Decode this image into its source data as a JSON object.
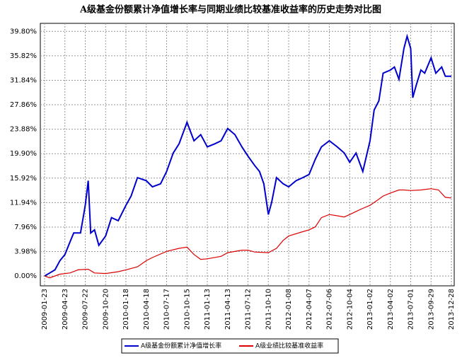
{
  "chart_data": {
    "type": "line",
    "title": "A级基金份额累计净值增长率与同期业绩比较基准收益率的历史走势对比图",
    "xlim": [
      "2009-01-23",
      "2013-12-28"
    ],
    "xticks": [
      "2009-01-23",
      "2009-04-23",
      "2009-07-22",
      "2009-10-20",
      "2010-01-18",
      "2010-04-18",
      "2010-07-17",
      "2010-10-15",
      "2011-01-13",
      "2011-04-13",
      "2011-07-12",
      "2011-10-10",
      "2012-01-08",
      "2012-04-07",
      "2012-07-06",
      "2012-10-04",
      "2013-01-02",
      "2013-04-02",
      "2013-07-01",
      "2013-09-29",
      "2013-12-28"
    ],
    "ylim": [
      -1.6,
      41.1
    ],
    "yticks": [
      {
        "value": 0,
        "label": "0.00%"
      },
      {
        "value": 3.98,
        "label": "3.98%"
      },
      {
        "value": 7.96,
        "label": "7.96%"
      },
      {
        "value": 11.94,
        "label": "11.94%"
      },
      {
        "value": 15.92,
        "label": "15.92%"
      },
      {
        "value": 19.9,
        "label": "19.90%"
      },
      {
        "value": 23.88,
        "label": "23.88%"
      },
      {
        "value": 27.86,
        "label": "27.86%"
      },
      {
        "value": 31.84,
        "label": "31.84%"
      },
      {
        "value": 35.82,
        "label": "35.82%"
      },
      {
        "value": 39.8,
        "label": "39.80%"
      }
    ],
    "grid": true,
    "legend": "bottom",
    "series": [
      {
        "name": "A级基金份额累计净值增长率",
        "color": "#0000cc",
        "x": [
          "2009-01-23",
          "2009-02-15",
          "2009-03-10",
          "2009-04-01",
          "2009-04-23",
          "2009-05-15",
          "2009-06-01",
          "2009-07-01",
          "2009-07-15",
          "2009-07-22",
          "2009-08-04",
          "2009-08-15",
          "2009-09-01",
          "2009-09-20",
          "2009-10-20",
          "2009-11-15",
          "2009-12-15",
          "2010-01-18",
          "2010-02-10",
          "2010-03-10",
          "2010-04-18",
          "2010-05-15",
          "2010-06-20",
          "2010-07-17",
          "2010-08-15",
          "2010-09-10",
          "2010-10-15",
          "2010-11-15",
          "2010-12-15",
          "2011-01-13",
          "2011-02-15",
          "2011-03-15",
          "2011-04-13",
          "2011-05-15",
          "2011-06-15",
          "2011-07-12",
          "2011-08-10",
          "2011-09-01",
          "2011-09-20",
          "2011-10-10",
          "2011-10-25",
          "2011-11-15",
          "2011-12-15",
          "2012-01-08",
          "2012-02-10",
          "2012-03-10",
          "2012-04-07",
          "2012-05-05",
          "2012-06-01",
          "2012-07-06",
          "2012-08-10",
          "2012-09-10",
          "2012-10-04",
          "2012-11-01",
          "2012-12-01",
          "2013-01-02",
          "2013-01-20",
          "2013-02-10",
          "2013-03-01",
          "2013-04-02",
          "2013-04-20",
          "2013-05-10",
          "2013-06-01",
          "2013-06-15",
          "2013-07-01",
          "2013-07-10",
          "2013-07-25",
          "2013-08-15",
          "2013-09-01",
          "2013-09-29",
          "2013-10-20",
          "2013-11-15",
          "2013-12-01",
          "2013-12-28"
        ],
        "values": [
          0,
          0.5,
          1,
          2.5,
          3.5,
          5.5,
          7,
          7,
          10,
          11.5,
          15.5,
          7,
          7.5,
          5,
          6.5,
          9.5,
          9,
          11.5,
          13,
          16,
          15.5,
          14.5,
          15,
          17,
          20,
          21.5,
          25,
          22,
          23,
          21,
          21.5,
          22,
          24,
          23,
          21,
          19.5,
          18,
          17,
          15,
          10,
          12,
          16,
          15,
          14.5,
          15.5,
          16,
          16.5,
          19,
          21,
          22,
          21,
          20,
          18.5,
          20,
          17,
          22,
          27,
          28.5,
          33,
          33.5,
          34,
          32,
          37,
          39,
          37,
          29,
          31,
          33.5,
          33,
          35.5,
          33,
          34,
          32.5,
          32.5
        ]
      },
      {
        "name": "A级业绩比较基准收益率",
        "color": "#dd0000",
        "x": [
          "2009-01-23",
          "2009-02-15",
          "2009-04-01",
          "2009-05-15",
          "2009-06-20",
          "2009-08-04",
          "2009-09-01",
          "2009-10-20",
          "2009-12-15",
          "2010-01-18",
          "2010-03-10",
          "2010-04-18",
          "2010-05-15",
          "2010-07-17",
          "2010-09-10",
          "2010-10-15",
          "2010-11-15",
          "2010-12-15",
          "2011-01-13",
          "2011-03-15",
          "2011-04-13",
          "2011-06-15",
          "2011-07-12",
          "2011-08-10",
          "2011-10-10",
          "2011-11-15",
          "2011-12-15",
          "2012-01-08",
          "2012-03-10",
          "2012-04-07",
          "2012-05-05",
          "2012-06-01",
          "2012-07-06",
          "2012-08-10",
          "2012-09-10",
          "2012-10-04",
          "2012-11-01",
          "2012-12-01",
          "2013-01-02",
          "2013-02-10",
          "2013-03-01",
          "2013-04-02",
          "2013-05-10",
          "2013-06-01",
          "2013-07-01",
          "2013-08-15",
          "2013-09-29",
          "2013-11-01",
          "2013-12-01",
          "2013-12-28"
        ],
        "values": [
          0,
          -0.3,
          0.3,
          0.5,
          1,
          1.1,
          0.5,
          0.4,
          0.7,
          1,
          1.5,
          2.5,
          3,
          4,
          4.5,
          4.7,
          3.5,
          2.7,
          2.8,
          3.2,
          3.8,
          4.2,
          4.2,
          3.9,
          3.8,
          4.5,
          5.8,
          6.5,
          7.2,
          7.5,
          8,
          9.5,
          10,
          9.8,
          9.6,
          10,
          10.5,
          11,
          11.5,
          12.5,
          13,
          13.5,
          14,
          14,
          13.9,
          14,
          14.2,
          14,
          12.8,
          12.7
        ]
      }
    ]
  }
}
